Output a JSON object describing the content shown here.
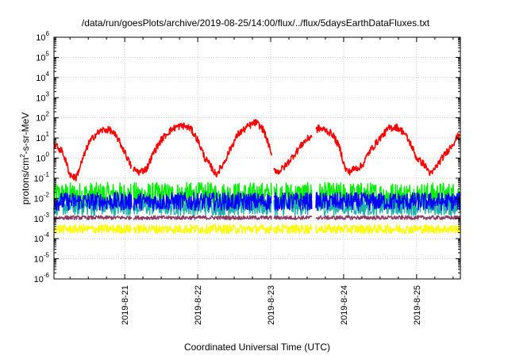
{
  "chart_data": {
    "type": "line",
    "title": "/data/run/goesPlots/archive/2019-08-25/14:00/flux/../flux/5daysEarthDataFluxes.txt",
    "xlabel": "Coordinated Universal Time (UTC)",
    "ylabel": "protons/cm²-s-sr-MeV",
    "ylabel_parts": {
      "a": "protons/cm",
      "sup": "2",
      "b": "-s-sr-MeV"
    },
    "yscale": "log",
    "ylim": [
      1e-06,
      1000000.0
    ],
    "xlim_days": [
      -0.97,
      4.6
    ],
    "grid": true,
    "y_ticks": [
      {
        "base": "10",
        "exp": "-6",
        "value": 1e-06
      },
      {
        "base": "10",
        "exp": "-5",
        "value": 1e-05
      },
      {
        "base": "10",
        "exp": "-4",
        "value": 0.0001
      },
      {
        "base": "10",
        "exp": "-3",
        "value": 0.001
      },
      {
        "base": "10",
        "exp": "-2",
        "value": 0.01
      },
      {
        "base": "10",
        "exp": "-1",
        "value": 0.1
      },
      {
        "base": "10",
        "exp": "0",
        "value": 1
      },
      {
        "base": "10",
        "exp": "1",
        "value": 10
      },
      {
        "base": "10",
        "exp": "2",
        "value": 100
      },
      {
        "base": "10",
        "exp": "3",
        "value": 1000
      },
      {
        "base": "10",
        "exp": "4",
        "value": 10000
      },
      {
        "base": "10",
        "exp": "5",
        "value": 100000
      },
      {
        "base": "10",
        "exp": "6",
        "value": 1000000
      }
    ],
    "x_ticks": [
      {
        "label": "2019-8-21",
        "day": 0
      },
      {
        "label": "2019-8-22",
        "day": 1
      },
      {
        "label": "2019-8-23",
        "day": 2
      },
      {
        "label": "2019-8-24",
        "day": 3
      },
      {
        "label": "2019-8-25",
        "day": 4
      }
    ],
    "series": [
      {
        "color": "#ff0000",
        "style": "modulated",
        "anchors": [
          [
            -0.97,
            5
          ],
          [
            -0.85,
            2
          ],
          [
            -0.75,
            0.15
          ],
          [
            -0.67,
            0.1
          ],
          [
            -0.6,
            0.5
          ],
          [
            -0.5,
            5
          ],
          [
            -0.4,
            15
          ],
          [
            -0.3,
            25
          ],
          [
            -0.2,
            25
          ],
          [
            -0.1,
            10
          ],
          [
            0.0,
            2
          ],
          [
            0.1,
            0.3
          ],
          [
            0.2,
            0.2
          ],
          [
            0.3,
            0.3
          ],
          [
            0.4,
            2
          ],
          [
            0.5,
            8
          ],
          [
            0.6,
            20
          ],
          [
            0.7,
            35
          ],
          [
            0.8,
            40
          ],
          [
            0.9,
            30
          ],
          [
            1.0,
            8
          ],
          [
            1.1,
            1
          ],
          [
            1.2,
            0.3
          ],
          [
            1.25,
            0.15
          ],
          [
            1.35,
            0.5
          ],
          [
            1.45,
            3
          ],
          [
            1.55,
            15
          ],
          [
            1.7,
            40
          ],
          [
            1.8,
            60
          ],
          [
            1.9,
            25
          ],
          [
            1.97,
            5
          ],
          [
            2.05,
            0.3
          ],
          [
            2.1,
            0.2
          ],
          [
            2.2,
            0.4
          ],
          [
            2.35,
            2
          ],
          [
            2.45,
            6
          ],
          [
            2.55,
            12
          ],
          [
            2.65,
            30
          ],
          [
            2.75,
            25
          ],
          [
            2.85,
            15
          ],
          [
            2.95,
            3
          ],
          [
            3.02,
            0.3
          ],
          [
            3.07,
            0.2
          ],
          [
            3.15,
            0.3
          ],
          [
            3.25,
            0.4
          ],
          [
            3.35,
            2
          ],
          [
            3.5,
            10
          ],
          [
            3.62,
            30
          ],
          [
            3.72,
            35
          ],
          [
            3.82,
            20
          ],
          [
            3.92,
            5
          ],
          [
            4.0,
            1
          ],
          [
            4.1,
            0.5
          ],
          [
            4.2,
            0.15
          ],
          [
            4.25,
            0.3
          ],
          [
            4.35,
            1
          ],
          [
            4.45,
            3
          ],
          [
            4.55,
            10
          ],
          [
            4.6,
            18
          ]
        ],
        "gaps": [
          [
            0.095,
            0.115
          ],
          [
            2.015,
            2.04
          ],
          [
            2.57,
            2.615
          ]
        ]
      },
      {
        "color": "#00ee00",
        "style": "noise",
        "base": 0.014,
        "spread_dec": 0.65,
        "gaps": [
          [
            0.1,
            0.115
          ],
          [
            2.015,
            2.04
          ],
          [
            2.57,
            2.615
          ]
        ]
      },
      {
        "color": "#20b2aa",
        "style": "noise",
        "base": 0.004,
        "spread_dec": 0.45,
        "gaps": [
          [
            0.1,
            0.115
          ],
          [
            2.015,
            2.04
          ],
          [
            2.57,
            2.615
          ]
        ]
      },
      {
        "color": "#0000ff",
        "style": "noise",
        "base": 0.007,
        "spread_dec": 0.45,
        "gaps": [
          [
            0.1,
            0.115
          ],
          [
            2.015,
            2.04
          ],
          [
            2.57,
            2.615
          ]
        ]
      },
      {
        "color": "#8b3a62",
        "style": "noise",
        "base": 0.0011,
        "spread_dec": 0.1,
        "gaps": [
          [
            0.1,
            0.115
          ],
          [
            2.015,
            2.04
          ],
          [
            2.57,
            2.615
          ]
        ]
      },
      {
        "color": "#ffff00",
        "style": "noise",
        "base": 0.0003,
        "spread_dec": 0.22,
        "gaps": [
          [
            0.1,
            0.115
          ],
          [
            2.015,
            2.04
          ],
          [
            2.57,
            2.615
          ]
        ]
      }
    ]
  }
}
